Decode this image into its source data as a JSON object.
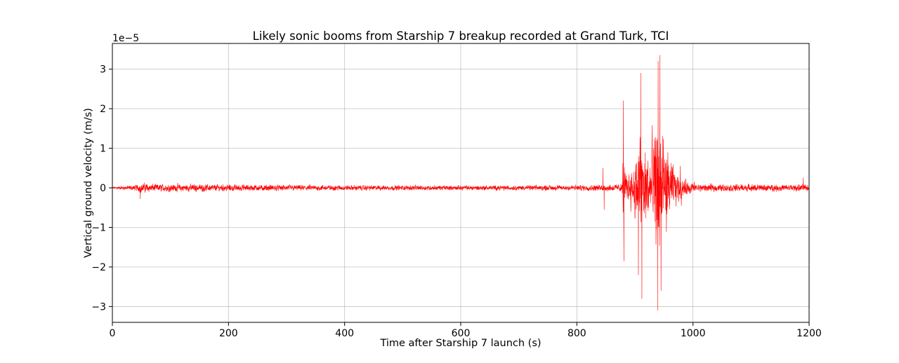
{
  "chart_data": {
    "type": "line",
    "title": "Likely sonic booms from Starship 7 breakup recorded at Grand Turk, TCI",
    "xlabel": "Time after Starship 7 launch (s)",
    "ylabel": "Vertical ground velocity (m/s)",
    "y_offset_label": "1e−5",
    "xlim": [
      0,
      1200
    ],
    "ylim": [
      -3.4,
      3.65
    ],
    "x_ticks": [
      0,
      200,
      400,
      600,
      800,
      1000,
      1200
    ],
    "x_tick_labels": [
      "0",
      "200",
      "400",
      "600",
      "800",
      "1000",
      "1200"
    ],
    "y_ticks": [
      -3,
      -2,
      -1,
      0,
      1,
      2,
      3
    ],
    "y_tick_labels": [
      "−3",
      "−2",
      "−1",
      "0",
      "1",
      "2",
      "3"
    ],
    "grid": true,
    "line_color": "#ff0000",
    "series": [
      {
        "envelope": [
          {
            "x": 0,
            "amp": 0.05
          },
          {
            "x": 40,
            "amp": 0.12
          },
          {
            "x": 50,
            "amp": 0.2
          },
          {
            "x": 70,
            "amp": 0.16
          },
          {
            "x": 140,
            "amp": 0.15
          },
          {
            "x": 300,
            "amp": 0.12
          },
          {
            "x": 500,
            "amp": 0.1
          },
          {
            "x": 700,
            "amp": 0.1
          },
          {
            "x": 820,
            "amp": 0.12
          },
          {
            "x": 870,
            "amp": 0.15
          },
          {
            "x": 878,
            "amp": 0.2
          },
          {
            "x": 880,
            "amp": 1.8
          },
          {
            "x": 884,
            "amp": 0.5
          },
          {
            "x": 895,
            "amp": 0.8
          },
          {
            "x": 903,
            "amp": 1.5
          },
          {
            "x": 910,
            "amp": 2.6
          },
          {
            "x": 915,
            "amp": 1.8
          },
          {
            "x": 925,
            "amp": 1.6
          },
          {
            "x": 938,
            "amp": 2.8
          },
          {
            "x": 942,
            "amp": 3.1
          },
          {
            "x": 948,
            "amp": 2.4
          },
          {
            "x": 958,
            "amp": 1.3
          },
          {
            "x": 972,
            "amp": 0.6
          },
          {
            "x": 985,
            "amp": 0.35
          },
          {
            "x": 1010,
            "amp": 0.15
          },
          {
            "x": 1200,
            "amp": 0.14
          }
        ],
        "spikes": [
          {
            "x": 48,
            "y": -0.28
          },
          {
            "x": 845,
            "y": 0.5
          },
          {
            "x": 847,
            "y": -0.55
          },
          {
            "x": 880,
            "y": 2.2
          },
          {
            "x": 881,
            "y": -1.85
          },
          {
            "x": 910,
            "y": 2.9
          },
          {
            "x": 912,
            "y": -2.8
          },
          {
            "x": 906,
            "y": -2.2
          },
          {
            "x": 940,
            "y": 3.2
          },
          {
            "x": 943,
            "y": 3.35
          },
          {
            "x": 939,
            "y": -3.1
          },
          {
            "x": 945,
            "y": -2.6
          },
          {
            "x": 978,
            "y": 0.55
          },
          {
            "x": 980,
            "y": -0.45
          },
          {
            "x": 1190,
            "y": 0.25
          }
        ]
      }
    ]
  }
}
